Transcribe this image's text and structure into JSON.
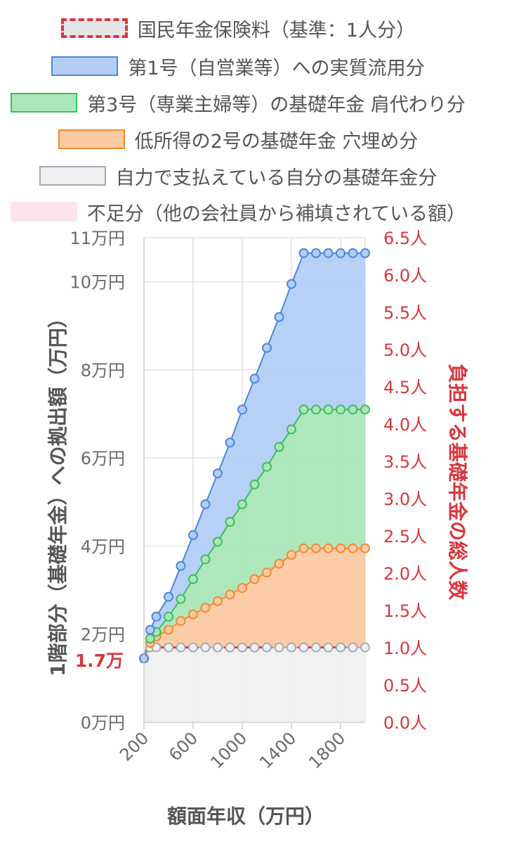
{
  "chart_data": {
    "type": "area",
    "xlabel": "額面年収（万円）",
    "ylabel": "1階部分（基礎年金）への拠出額（万円）",
    "y2label": "負担する基礎年金の総人数",
    "x_ticks": [
      "200",
      "600",
      "1000",
      "1400",
      "1800"
    ],
    "y_ticks": [
      "0万円",
      "2万円",
      "4万円",
      "6万円",
      "8万円",
      "10万円",
      "11万円"
    ],
    "y2_ticks": [
      "0.0人",
      "0.5人",
      "1.0人",
      "1.5人",
      "2.0人",
      "2.5人",
      "3.0人",
      "3.5人",
      "4.0人",
      "4.5人",
      "5.0人",
      "5.5人",
      "6.0人",
      "6.5人"
    ],
    "y_annotation": "1.7万",
    "xlim": [
      200,
      2000
    ],
    "ylim": [
      0,
      11
    ],
    "y2lim": [
      0,
      6.5
    ],
    "grid": true,
    "legend_position": "top",
    "x": [
      200,
      250,
      300,
      400,
      500,
      600,
      700,
      800,
      900,
      1000,
      1100,
      1200,
      1300,
      1400,
      1500,
      1600,
      1700,
      1800,
      1900,
      2000
    ],
    "series": [
      {
        "name": "国民年金保険料（基準：1人分）",
        "style": "dashed-line",
        "color": "#d9363e",
        "values": [
          1.7,
          1.7,
          1.7,
          1.7,
          1.7,
          1.7,
          1.7,
          1.7,
          1.7,
          1.7,
          1.7,
          1.7,
          1.7,
          1.7,
          1.7,
          1.7,
          1.7,
          1.7,
          1.7,
          1.7
        ]
      },
      {
        "name": "第1号（自営業等）への実質流用分",
        "color": "#4a86e0",
        "fill": "#b3cdf5",
        "values": [
          1.45,
          2.1,
          2.4,
          2.85,
          3.55,
          4.25,
          4.95,
          5.65,
          6.35,
          7.1,
          7.8,
          8.5,
          9.2,
          9.95,
          10.65,
          10.65,
          10.65,
          10.65,
          10.65,
          10.65
        ]
      },
      {
        "name": "第3号（専業主婦等）の基礎年金 肩代わり分",
        "color": "#3cbf5a",
        "fill": "#abe6b9",
        "values": [
          1.45,
          1.9,
          2.05,
          2.4,
          2.8,
          3.25,
          3.7,
          4.1,
          4.55,
          4.95,
          5.4,
          5.8,
          6.25,
          6.65,
          7.1,
          7.1,
          7.1,
          7.1,
          7.1,
          7.1
        ]
      },
      {
        "name": "低所得の2号の基礎年金 穴埋め分",
        "color": "#f08a33",
        "fill": "#fbc9a2",
        "values": [
          1.45,
          1.8,
          1.95,
          2.1,
          2.3,
          2.45,
          2.6,
          2.75,
          2.9,
          3.05,
          3.25,
          3.4,
          3.6,
          3.8,
          3.95,
          3.95,
          3.95,
          3.95,
          3.95,
          3.95
        ]
      },
      {
        "name": "自力で支払えている自分の基礎年金分",
        "color": "#a9aab3",
        "fill": "#eff0f2",
        "values": [
          1.45,
          1.7,
          1.7,
          1.7,
          1.7,
          1.7,
          1.7,
          1.7,
          1.7,
          1.7,
          1.7,
          1.7,
          1.7,
          1.7,
          1.7,
          1.7,
          1.7,
          1.7,
          1.7,
          1.7
        ]
      },
      {
        "name": "不足分（他の会社員から補填されている額）",
        "color": "#fde3ea",
        "fill": "#fde3ea",
        "values": [
          0,
          0,
          0,
          0,
          0,
          0,
          0,
          0,
          0,
          0,
          0,
          0,
          0,
          0,
          0,
          0,
          0,
          0,
          0,
          0
        ]
      }
    ]
  }
}
